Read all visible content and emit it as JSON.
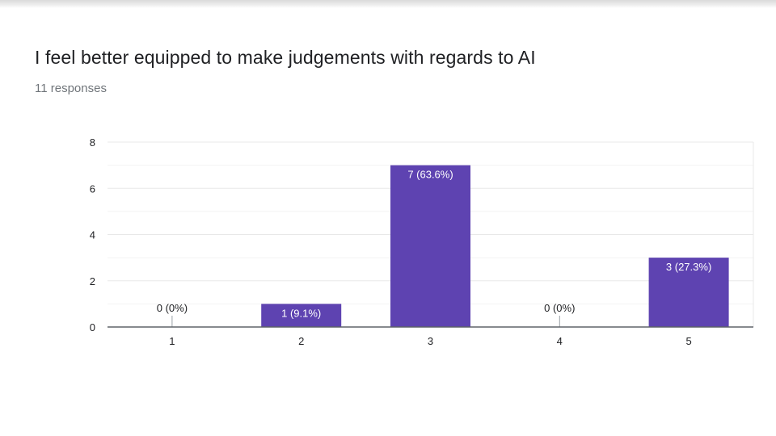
{
  "question": {
    "title": "I feel better equipped to make judgements with regards to AI",
    "responses": "11 responses"
  },
  "colors": {
    "bar": "#5e43b1",
    "grid": "#e8e8e8",
    "axis": "#5f6368",
    "text": "#202124"
  },
  "chart_data": {
    "type": "bar",
    "categories": [
      "1",
      "2",
      "3",
      "4",
      "5"
    ],
    "values": [
      0,
      1,
      7,
      0,
      3
    ],
    "labels": [
      "0 (0%)",
      "1 (9.1%)",
      "7 (63.6%)",
      "0 (0%)",
      "3 (27.3%)"
    ],
    "title": "I feel better equipped to make judgements with regards to AI",
    "subtitle": "11 responses",
    "xlabel": "",
    "ylabel": "",
    "ylim": [
      0,
      8
    ],
    "yticks": [
      0,
      2,
      4,
      6,
      8
    ],
    "grid": true,
    "legend": "none"
  }
}
